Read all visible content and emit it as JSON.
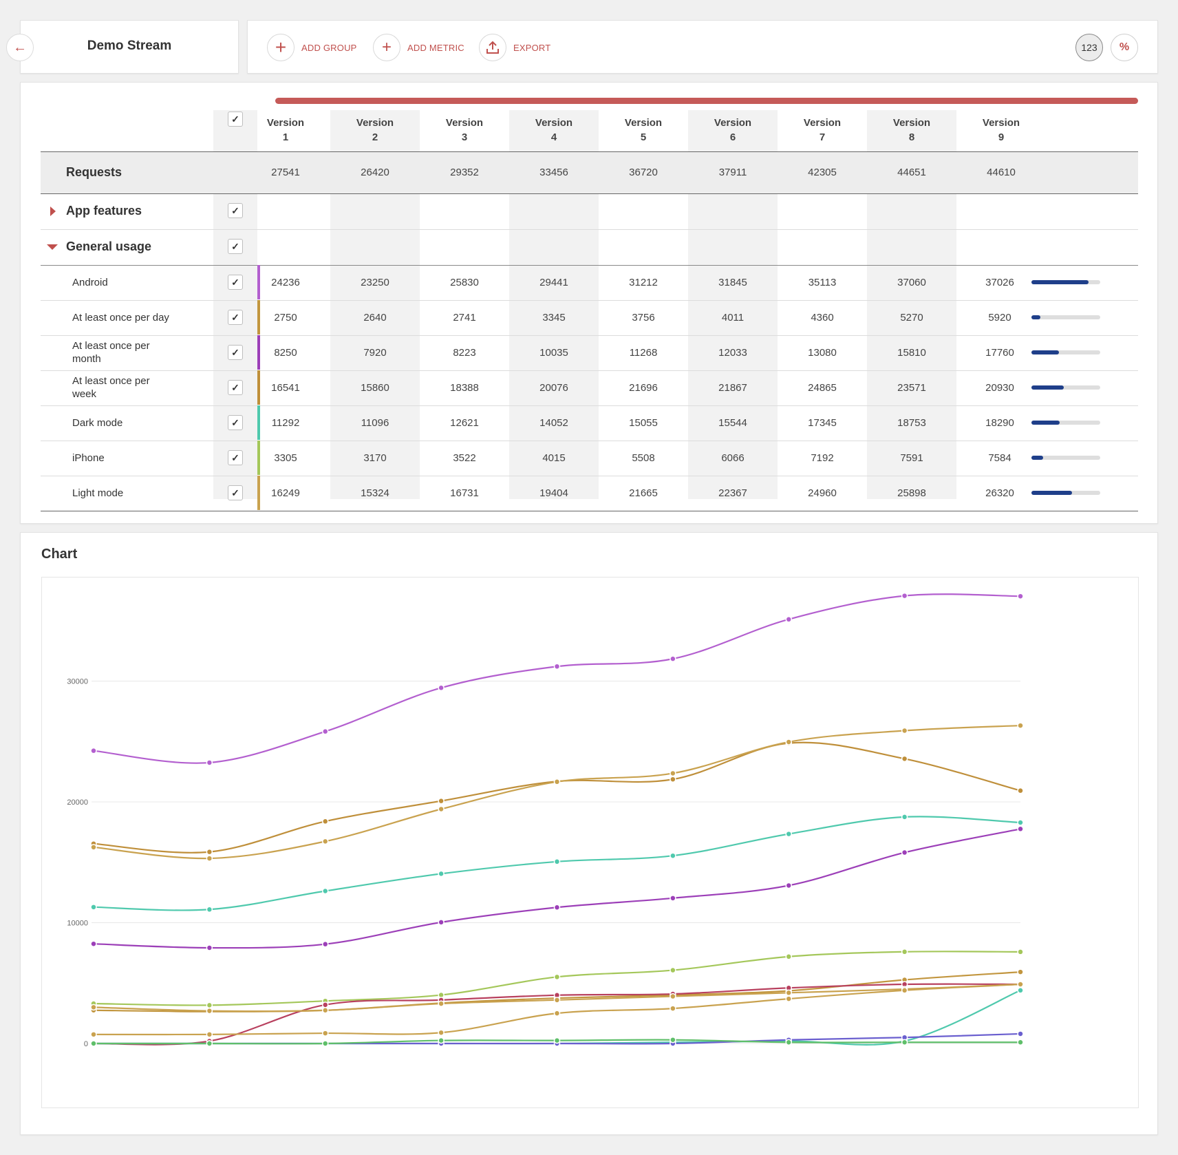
{
  "header": {
    "title": "Demo Stream",
    "back_icon": "arrow-left-icon",
    "actions": [
      {
        "label": "ADD GROUP",
        "icon": "plus-icon"
      },
      {
        "label": "ADD METRIC",
        "icon": "plus-icon"
      },
      {
        "label": "EXPORT",
        "icon": "upload-icon"
      }
    ],
    "format_buttons": {
      "numeric": "123",
      "percent": "%"
    }
  },
  "table": {
    "columns": [
      {
        "line1": "Version",
        "line2": "1"
      },
      {
        "line1": "Version",
        "line2": "2"
      },
      {
        "line1": "Version",
        "line2": "3"
      },
      {
        "line1": "Version",
        "line2": "4"
      },
      {
        "line1": "Version",
        "line2": "5"
      },
      {
        "line1": "Version",
        "line2": "6"
      },
      {
        "line1": "Version",
        "line2": "7"
      },
      {
        "line1": "Version",
        "line2": "8"
      },
      {
        "line1": "Version",
        "line2": "9"
      }
    ],
    "requests": {
      "label": "Requests",
      "values": [
        "27541",
        "26420",
        "29352",
        "33456",
        "36720",
        "37911",
        "42305",
        "44651",
        "44610"
      ]
    },
    "groups": [
      {
        "label": "App features",
        "expanded": false
      },
      {
        "label": "General usage",
        "expanded": true
      }
    ],
    "rows": [
      {
        "line1": "Android",
        "line2": "",
        "color": "#b35fcf",
        "values": [
          "24236",
          "23250",
          "25830",
          "29441",
          "31212",
          "31845",
          "35113",
          "37060",
          "37026"
        ],
        "share": 0.83
      },
      {
        "line1": "At least once per day",
        "line2": "",
        "color": "#c2963f",
        "values": [
          "2750",
          "2640",
          "2741",
          "3345",
          "3756",
          "4011",
          "4360",
          "5270",
          "5920"
        ],
        "share": 0.13
      },
      {
        "line1": "At least once per",
        "line2": "month",
        "color": "#9c3fb8",
        "values": [
          "8250",
          "7920",
          "8223",
          "10035",
          "11268",
          "12033",
          "13080",
          "15810",
          "17760"
        ],
        "share": 0.4
      },
      {
        "line1": "At least once per",
        "line2": "week",
        "color": "#bf8f3a",
        "values": [
          "16541",
          "15860",
          "18388",
          "20076",
          "21696",
          "21867",
          "24865",
          "23571",
          "20930"
        ],
        "share": 0.47
      },
      {
        "line1": "Dark mode",
        "line2": "",
        "color": "#4fc9ad",
        "values": [
          "11292",
          "11096",
          "12621",
          "14052",
          "15055",
          "15544",
          "17345",
          "18753",
          "18290"
        ],
        "share": 0.41
      },
      {
        "line1": "iPhone",
        "line2": "",
        "color": "#a4c75a",
        "values": [
          "3305",
          "3170",
          "3522",
          "4015",
          "5508",
          "6066",
          "7192",
          "7591",
          "7584"
        ],
        "share": 0.17
      },
      {
        "line1": "Light mode",
        "line2": "",
        "color": "#c9a24f",
        "values": [
          "16249",
          "15324",
          "16731",
          "19404",
          "21665",
          "22367",
          "24960",
          "25898",
          "26320"
        ],
        "share": 0.59
      }
    ]
  },
  "chart": {
    "title": "Chart",
    "chart_data": {
      "type": "line",
      "x": [
        1,
        2,
        3,
        4,
        5,
        6,
        7,
        8,
        9
      ],
      "ylim": [
        0,
        40000
      ],
      "yticks": [
        0,
        10000,
        20000,
        30000
      ],
      "ytick_labels": [
        "0",
        "10000",
        "20000",
        "30000"
      ],
      "grid": true,
      "series": [
        {
          "color": "#b35fcf",
          "values": [
            24236,
            23250,
            25830,
            29441,
            31212,
            31845,
            35113,
            37060,
            37026
          ]
        },
        {
          "color": "#bf8f3a",
          "values": [
            16541,
            15860,
            18388,
            20076,
            21696,
            21867,
            24865,
            23571,
            20930
          ]
        },
        {
          "color": "#c9a24f",
          "values": [
            16249,
            15324,
            16731,
            19404,
            21665,
            22367,
            24960,
            25898,
            26320
          ]
        },
        {
          "color": "#4fc9ad",
          "values": [
            11292,
            11096,
            12621,
            14052,
            15055,
            15544,
            17345,
            18753,
            18290
          ]
        },
        {
          "color": "#9c3fb8",
          "values": [
            8250,
            7920,
            8223,
            10035,
            11268,
            12033,
            13080,
            15810,
            17760
          ]
        },
        {
          "color": "#a4c75a",
          "values": [
            3305,
            3170,
            3522,
            4015,
            5508,
            6066,
            7192,
            7591,
            7584
          ]
        },
        {
          "color": "#c2963f",
          "values": [
            2750,
            2640,
            2741,
            3345,
            3756,
            4011,
            4360,
            5270,
            5920
          ]
        },
        {
          "color": "#b8405e",
          "values": [
            0,
            200,
            3200,
            3600,
            4000,
            4100,
            4600,
            4900,
            4900
          ]
        },
        {
          "color": "#c9a24f",
          "values": [
            3000,
            2700,
            2750,
            3300,
            3600,
            3900,
            4200,
            4500,
            4900
          ]
        },
        {
          "color": "#c9a24f",
          "values": [
            750,
            750,
            850,
            900,
            2500,
            2900,
            3700,
            4400,
            4900
          ]
        },
        {
          "color": "#4fc9ad",
          "values": [
            0,
            0,
            0,
            0,
            0,
            100,
            200,
            200,
            4400
          ]
        },
        {
          "color": "#6a5fcf",
          "values": [
            0,
            0,
            0,
            0,
            0,
            0,
            300,
            500,
            800
          ]
        },
        {
          "color": "#5fbf6a",
          "values": [
            0,
            0,
            0,
            250,
            250,
            300,
            100,
            100,
            100
          ]
        }
      ]
    }
  }
}
